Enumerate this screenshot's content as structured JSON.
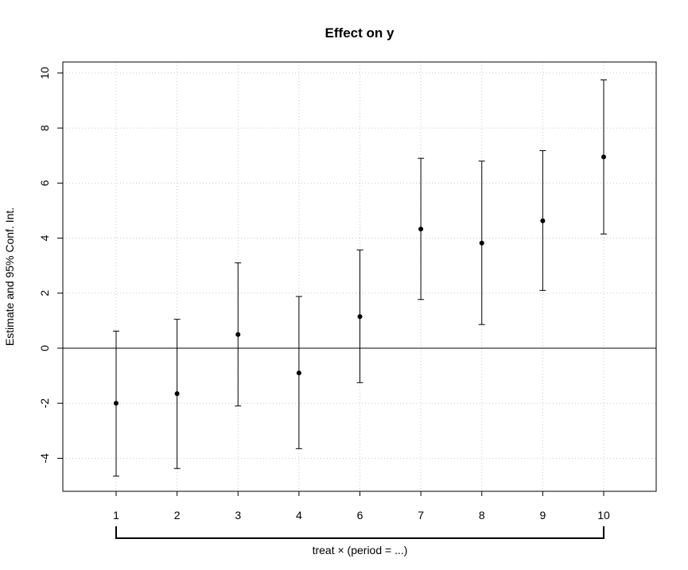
{
  "chart_data": {
    "type": "scatter",
    "title": "Effect on y",
    "ylabel": "Estimate and 95% Conf. Int.",
    "xlabel": "treat × (period = ...)",
    "categories": [
      "1",
      "2",
      "3",
      "4",
      "6",
      "7",
      "8",
      "9",
      "10"
    ],
    "estimates": [
      -2.0,
      -1.65,
      0.5,
      -0.9,
      1.15,
      4.33,
      3.82,
      4.63,
      6.95
    ],
    "ci_lower": [
      -4.65,
      -4.37,
      -2.1,
      -3.65,
      -1.25,
      1.77,
      0.86,
      2.1,
      4.15
    ],
    "ci_upper": [
      0.62,
      1.05,
      3.1,
      1.88,
      3.57,
      6.9,
      6.8,
      7.18,
      9.75
    ],
    "yticks": [
      -4,
      -2,
      0,
      2,
      4,
      6,
      8,
      10
    ],
    "ylim": [
      -5.2,
      10.4
    ],
    "reference_line": 0,
    "grid": true
  }
}
